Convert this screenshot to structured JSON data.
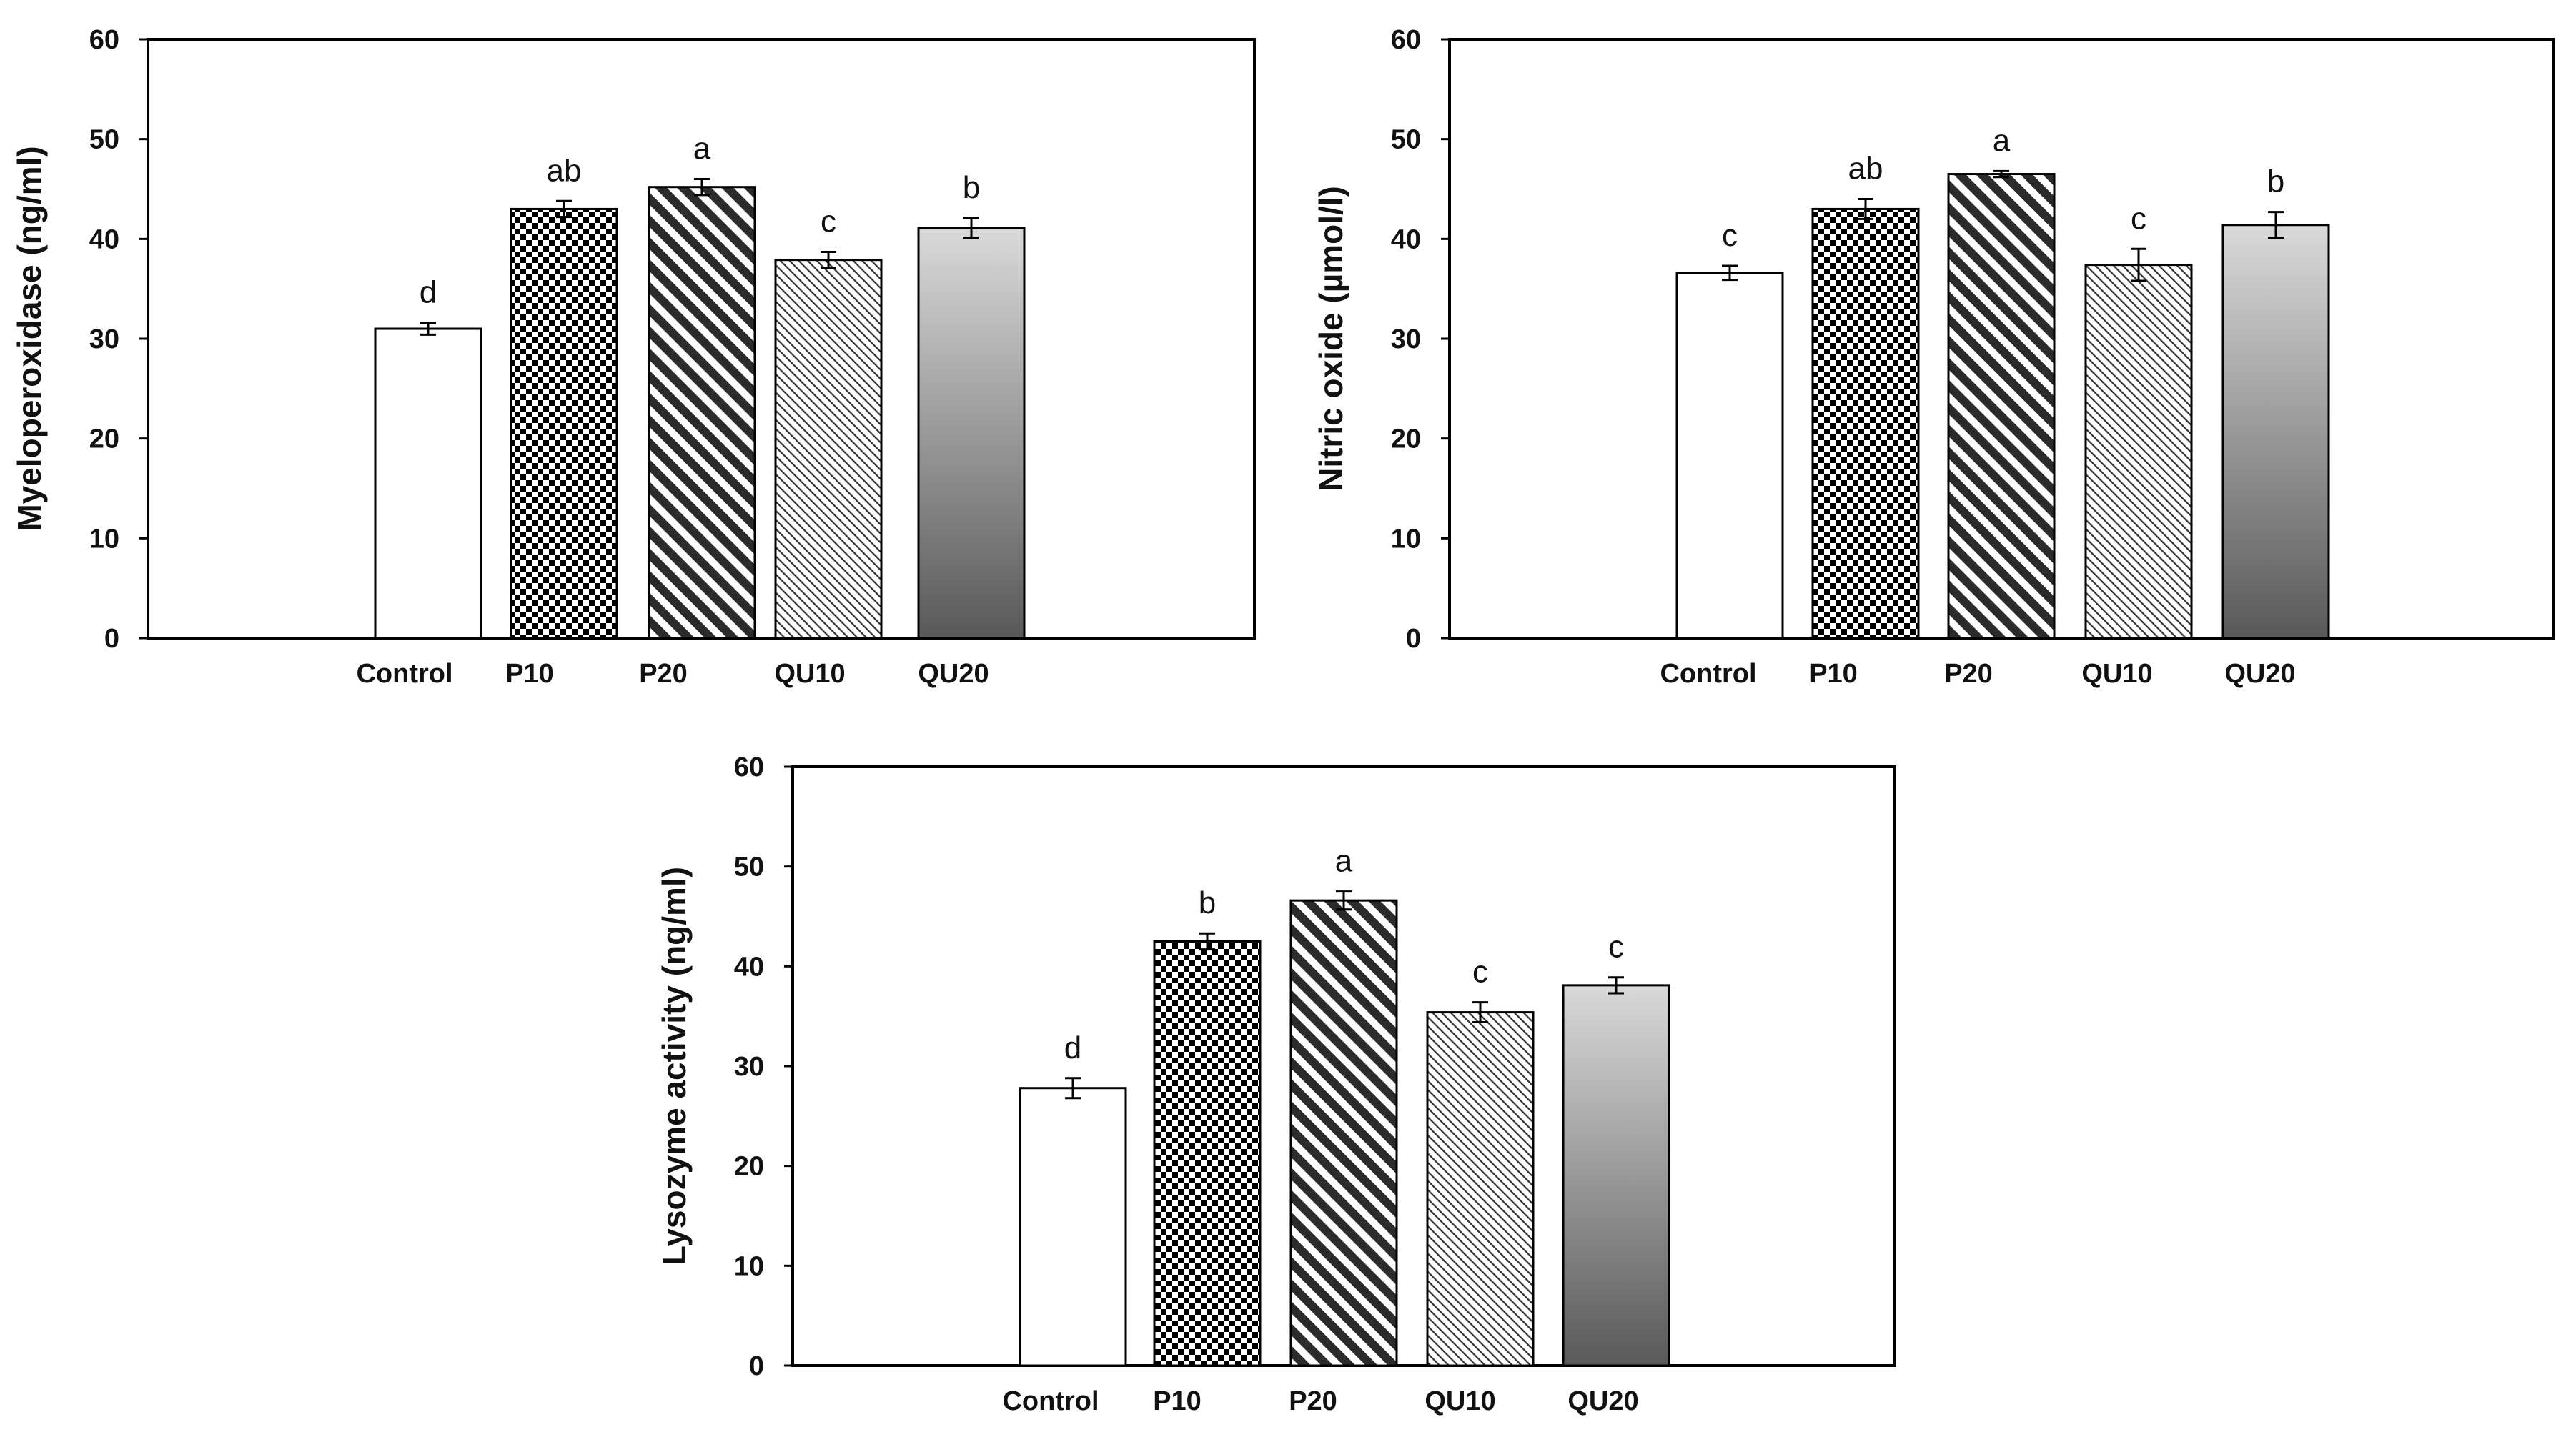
{
  "chart_data": [
    {
      "type": "bar",
      "title": "",
      "xlabel": "",
      "ylabel": "Myeloperoxidase (ng/ml)",
      "ylim": [
        0,
        60
      ],
      "yticks": [
        0,
        10,
        20,
        30,
        40,
        50,
        60
      ],
      "categories": [
        "Control",
        "P10",
        "P20",
        "QU10",
        "QU20"
      ],
      "values": [
        31,
        43,
        45.2,
        37.9,
        41.1
      ],
      "errors": [
        0.6,
        0.8,
        0.8,
        0.8,
        1.0
      ],
      "significance": [
        "d",
        "ab",
        "a",
        "c",
        "b"
      ],
      "patterns": [
        "white",
        "checker",
        "dark-diagonal",
        "light-diagonal",
        "gradient"
      ]
    },
    {
      "type": "bar",
      "title": "",
      "xlabel": "",
      "ylabel": "Nitric oxide (µmol/l)",
      "ylim": [
        0,
        60
      ],
      "yticks": [
        0,
        10,
        20,
        30,
        40,
        50,
        60
      ],
      "categories": [
        "Control",
        "P10",
        "P20",
        "QU10",
        "QU20"
      ],
      "values": [
        36.6,
        43,
        46.5,
        37.4,
        41.4
      ],
      "errors": [
        0.7,
        1.0,
        0.3,
        1.6,
        1.3
      ],
      "significance": [
        "c",
        "ab",
        "a",
        "c",
        "b"
      ],
      "patterns": [
        "white",
        "checker",
        "dark-diagonal",
        "light-diagonal",
        "gradient"
      ]
    },
    {
      "type": "bar",
      "title": "",
      "xlabel": "",
      "ylabel": "Lysozyme activity (ng/ml)",
      "ylim": [
        0,
        60
      ],
      "yticks": [
        0,
        10,
        20,
        30,
        40,
        50,
        60
      ],
      "categories": [
        "Control",
        "P10",
        "P20",
        "QU10",
        "QU20"
      ],
      "values": [
        27.8,
        42.5,
        46.6,
        35.4,
        38.1
      ],
      "errors": [
        1.0,
        0.8,
        0.9,
        1.0,
        0.8
      ],
      "significance": [
        "d",
        "b",
        "a",
        "c",
        "c"
      ],
      "patterns": [
        "white",
        "checker",
        "dark-diagonal",
        "light-diagonal",
        "gradient"
      ]
    }
  ],
  "colors": {
    "axis": "#000000",
    "bar_fill": "#ffffff",
    "pattern_dark": "#000000",
    "gradient_top": "#d9d9d9",
    "gradient_bottom": "#595959"
  }
}
